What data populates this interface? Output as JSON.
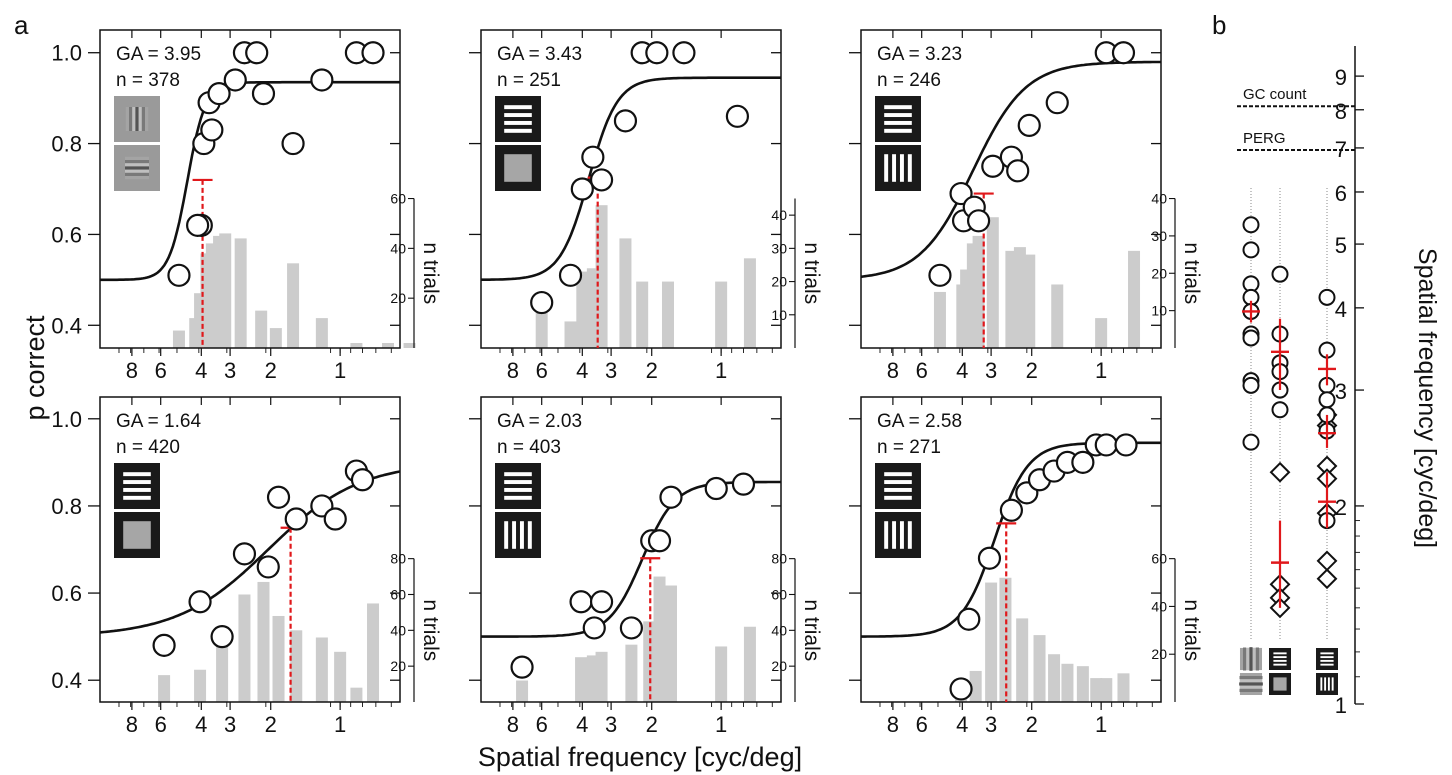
{
  "figure": {
    "panel_a_letter": "a",
    "panel_b_letter": "b",
    "ylabel": "p correct",
    "xlabel": "Spatial frequency [cyc/deg]",
    "secondary_ylabel": "n trials",
    "right_ylabel": "Spatial frequency [cyc/deg]",
    "colors": {
      "curve": "#111111",
      "bar": "#cccccc",
      "threshold": "#e0181b",
      "marker_stroke": "#111111"
    }
  },
  "chart_data": [
    {
      "type": "scatter",
      "panel": "a-top-left",
      "ga_text": "GA = 3.95",
      "n_text": "n = 378",
      "icons": [
        "gabor-vertical",
        "gabor-horizontal"
      ],
      "x_scale": "log-reversed",
      "xlim": [
        11,
        0.55
      ],
      "x_ticks": [
        8,
        6,
        4,
        3,
        2,
        1
      ],
      "ylim": [
        0.35,
        1.05
      ],
      "y_ticks": [
        0.4,
        0.6,
        0.8,
        1.0
      ],
      "threshold": {
        "x": 3.95,
        "p": 0.72
      },
      "curve": {
        "guess": 0.5,
        "top": 0.935,
        "x50": 4.6,
        "slope": 11
      },
      "points": [
        {
          "x": 5.0,
          "y": 0.51
        },
        {
          "x": 4.0,
          "y": 0.62
        },
        {
          "x": 4.15,
          "y": 0.62
        },
        {
          "x": 3.9,
          "y": 0.8
        },
        {
          "x": 3.7,
          "y": 0.89
        },
        {
          "x": 3.6,
          "y": 0.83
        },
        {
          "x": 3.35,
          "y": 0.91
        },
        {
          "x": 2.85,
          "y": 0.94
        },
        {
          "x": 2.6,
          "y": 1.0
        },
        {
          "x": 2.3,
          "y": 1.0
        },
        {
          "x": 2.15,
          "y": 0.91
        },
        {
          "x": 1.6,
          "y": 0.8
        },
        {
          "x": 1.2,
          "y": 0.94
        },
        {
          "x": 0.85,
          "y": 1.0
        },
        {
          "x": 0.72,
          "y": 1.0
        }
      ],
      "bars_ylim": [
        0,
        60
      ],
      "bars_ticks": [
        20,
        40,
        60
      ],
      "bars": [
        {
          "x": 5.0,
          "n": 7
        },
        {
          "x": 4.25,
          "n": 12
        },
        {
          "x": 4.05,
          "n": 22
        },
        {
          "x": 3.8,
          "n": 38
        },
        {
          "x": 3.6,
          "n": 42
        },
        {
          "x": 3.35,
          "n": 45
        },
        {
          "x": 3.15,
          "n": 46
        },
        {
          "x": 2.7,
          "n": 44
        },
        {
          "x": 2.2,
          "n": 15
        },
        {
          "x": 1.9,
          "n": 8
        },
        {
          "x": 1.6,
          "n": 34
        },
        {
          "x": 1.2,
          "n": 12
        },
        {
          "x": 0.85,
          "n": 2
        },
        {
          "x": 0.62,
          "n": 2
        },
        {
          "x": 0.5,
          "n": 2
        }
      ]
    },
    {
      "type": "scatter",
      "panel": "a-top-middle",
      "ga_text": "GA = 3.43",
      "n_text": "n = 251",
      "icons": [
        "horizontal-grating",
        "gray-square"
      ],
      "x_scale": "log-reversed",
      "xlim": [
        11,
        0.55
      ],
      "x_ticks": [
        8,
        6,
        4,
        3,
        2,
        1
      ],
      "ylim": [
        0.35,
        1.05
      ],
      "y_ticks": [
        0.4,
        0.6,
        0.8,
        1.0
      ],
      "threshold": {
        "x": 3.43,
        "p": 0.725
      },
      "curve": {
        "guess": 0.5,
        "top": 0.945,
        "x50": 3.75,
        "slope": 7
      },
      "points": [
        {
          "x": 6.0,
          "y": 0.45
        },
        {
          "x": 4.5,
          "y": 0.51
        },
        {
          "x": 4.0,
          "y": 0.7
        },
        {
          "x": 3.6,
          "y": 0.77
        },
        {
          "x": 3.3,
          "y": 0.72
        },
        {
          "x": 2.6,
          "y": 0.85
        },
        {
          "x": 2.2,
          "y": 1.0
        },
        {
          "x": 1.9,
          "y": 1.0
        },
        {
          "x": 1.45,
          "y": 1.0
        },
        {
          "x": 0.85,
          "y": 0.86
        }
      ],
      "bars_ylim": [
        0,
        45
      ],
      "bars_ticks": [
        10,
        20,
        30,
        40
      ],
      "bars": [
        {
          "x": 6.0,
          "n": 14
        },
        {
          "x": 4.5,
          "n": 8
        },
        {
          "x": 4.0,
          "n": 23
        },
        {
          "x": 3.6,
          "n": 24
        },
        {
          "x": 3.3,
          "n": 43
        },
        {
          "x": 2.6,
          "n": 33
        },
        {
          "x": 2.2,
          "n": 20
        },
        {
          "x": 1.7,
          "n": 20
        },
        {
          "x": 1.0,
          "n": 20
        },
        {
          "x": 0.75,
          "n": 27
        }
      ]
    },
    {
      "type": "scatter",
      "panel": "a-top-right",
      "ga_text": "GA = 3.23",
      "n_text": "n = 246",
      "icons": [
        "horizontal-grating",
        "vertical-grating"
      ],
      "x_scale": "log-reversed",
      "xlim": [
        11,
        0.55
      ],
      "x_ticks": [
        8,
        6,
        4,
        3,
        2,
        1
      ],
      "ylim": [
        0.35,
        1.05
      ],
      "y_ticks": [
        0.4,
        0.6,
        0.8,
        1.0
      ],
      "threshold": {
        "x": 3.23,
        "p": 0.69
      },
      "curve": {
        "guess": 0.5,
        "top": 0.98,
        "x50": 3.6,
        "slope": 3.8
      },
      "points": [
        {
          "x": 5.0,
          "y": 0.51
        },
        {
          "x": 4.05,
          "y": 0.69
        },
        {
          "x": 3.95,
          "y": 0.63
        },
        {
          "x": 3.55,
          "y": 0.66
        },
        {
          "x": 3.4,
          "y": 0.63
        },
        {
          "x": 2.95,
          "y": 0.75
        },
        {
          "x": 2.45,
          "y": 0.77
        },
        {
          "x": 2.3,
          "y": 0.74
        },
        {
          "x": 2.05,
          "y": 0.84
        },
        {
          "x": 1.55,
          "y": 0.89
        },
        {
          "x": 0.95,
          "y": 1.0
        },
        {
          "x": 0.8,
          "y": 1.0
        }
      ],
      "bars_ylim": [
        0,
        40
      ],
      "bars_ticks": [
        10,
        20,
        30,
        40
      ],
      "bars": [
        {
          "x": 5.0,
          "n": 15
        },
        {
          "x": 4.0,
          "n": 17
        },
        {
          "x": 3.85,
          "n": 21
        },
        {
          "x": 3.6,
          "n": 28
        },
        {
          "x": 3.4,
          "n": 30
        },
        {
          "x": 2.95,
          "n": 35
        },
        {
          "x": 2.45,
          "n": 26
        },
        {
          "x": 2.25,
          "n": 27
        },
        {
          "x": 2.05,
          "n": 25
        },
        {
          "x": 1.55,
          "n": 17
        },
        {
          "x": 1.0,
          "n": 8
        },
        {
          "x": 0.72,
          "n": 26
        }
      ]
    },
    {
      "type": "scatter",
      "panel": "a-bottom-left",
      "ga_text": "GA = 1.64",
      "n_text": "n = 420",
      "icons": [
        "horizontal-grating",
        "gray-square"
      ],
      "x_scale": "log-reversed",
      "xlim": [
        11,
        0.55
      ],
      "x_ticks": [
        8,
        6,
        4,
        3,
        2,
        1
      ],
      "ylim": [
        0.35,
        1.05
      ],
      "y_ticks": [
        0.4,
        0.6,
        0.8,
        1.0
      ],
      "threshold": {
        "x": 1.64,
        "p": 0.75
      },
      "curve": {
        "guess": 0.5,
        "top": 0.9,
        "x50": 2.05,
        "slope": 2.2
      },
      "points": [
        {
          "x": 5.8,
          "y": 0.48
        },
        {
          "x": 4.05,
          "y": 0.58
        },
        {
          "x": 3.25,
          "y": 0.5
        },
        {
          "x": 2.6,
          "y": 0.69
        },
        {
          "x": 2.05,
          "y": 0.66
        },
        {
          "x": 1.85,
          "y": 0.82
        },
        {
          "x": 1.55,
          "y": 0.77
        },
        {
          "x": 1.2,
          "y": 0.8
        },
        {
          "x": 1.05,
          "y": 0.77
        },
        {
          "x": 0.85,
          "y": 0.88
        },
        {
          "x": 0.8,
          "y": 0.86
        }
      ],
      "bars_ylim": [
        0,
        80
      ],
      "bars_ticks": [
        20,
        40,
        60,
        80
      ],
      "bars": [
        {
          "x": 5.8,
          "n": 15
        },
        {
          "x": 4.05,
          "n": 18
        },
        {
          "x": 3.25,
          "n": 32
        },
        {
          "x": 2.6,
          "n": 60
        },
        {
          "x": 2.15,
          "n": 67
        },
        {
          "x": 1.85,
          "n": 48
        },
        {
          "x": 1.55,
          "n": 40
        },
        {
          "x": 1.2,
          "n": 36
        },
        {
          "x": 1.0,
          "n": 28
        },
        {
          "x": 0.85,
          "n": 8
        },
        {
          "x": 0.72,
          "n": 55
        }
      ]
    },
    {
      "type": "scatter",
      "panel": "a-bottom-middle",
      "ga_text": "GA =  2.03",
      "n_text": "n = 403",
      "icons": [
        "horizontal-grating",
        "vertical-grating"
      ],
      "x_scale": "log-reversed",
      "xlim": [
        11,
        0.55
      ],
      "x_ticks": [
        8,
        6,
        4,
        3,
        2,
        1
      ],
      "ylim": [
        0.35,
        1.05
      ],
      "y_ticks": [
        0.4,
        0.6,
        0.8,
        1.0
      ],
      "threshold": {
        "x": 2.03,
        "p": 0.68
      },
      "curve": {
        "guess": 0.5,
        "top": 0.855,
        "x50": 2.2,
        "slope": 6
      },
      "points": [
        {
          "x": 7.3,
          "y": 0.43
        },
        {
          "x": 4.05,
          "y": 0.58
        },
        {
          "x": 3.55,
          "y": 0.52
        },
        {
          "x": 3.3,
          "y": 0.58
        },
        {
          "x": 2.45,
          "y": 0.52
        },
        {
          "x": 2.0,
          "y": 0.72
        },
        {
          "x": 1.85,
          "y": 0.72
        },
        {
          "x": 1.65,
          "y": 0.82
        },
        {
          "x": 1.05,
          "y": 0.84
        },
        {
          "x": 0.8,
          "y": 0.85
        }
      ],
      "bars_ylim": [
        0,
        80
      ],
      "bars_ticks": [
        20,
        40,
        60,
        80
      ],
      "bars": [
        {
          "x": 7.3,
          "n": 12
        },
        {
          "x": 4.05,
          "n": 25
        },
        {
          "x": 3.6,
          "n": 26
        },
        {
          "x": 3.3,
          "n": 28
        },
        {
          "x": 2.45,
          "n": 32
        },
        {
          "x": 2.05,
          "n": 45
        },
        {
          "x": 1.85,
          "n": 70
        },
        {
          "x": 1.65,
          "n": 65
        },
        {
          "x": 1.0,
          "n": 31
        },
        {
          "x": 0.75,
          "n": 42
        }
      ]
    },
    {
      "type": "scatter",
      "panel": "a-bottom-right",
      "ga_text": "GA = 2.58",
      "n_text": "n = 271",
      "icons": [
        "horizontal-grating",
        "vertical-grating"
      ],
      "x_scale": "log-reversed",
      "xlim": [
        11,
        0.55
      ],
      "x_ticks": [
        8,
        6,
        4,
        3,
        2,
        1
      ],
      "ylim": [
        0.35,
        1.05
      ],
      "y_ticks": [
        0.4,
        0.6,
        0.8,
        1.0
      ],
      "threshold": {
        "x": 2.58,
        "p": 0.76
      },
      "curve": {
        "guess": 0.5,
        "top": 0.945,
        "x50": 2.9,
        "slope": 6
      },
      "points": [
        {
          "x": 4.05,
          "y": 0.38
        },
        {
          "x": 3.75,
          "y": 0.54
        },
        {
          "x": 3.05,
          "y": 0.68
        },
        {
          "x": 2.45,
          "y": 0.79
        },
        {
          "x": 2.1,
          "y": 0.83
        },
        {
          "x": 1.85,
          "y": 0.86
        },
        {
          "x": 1.6,
          "y": 0.88
        },
        {
          "x": 1.4,
          "y": 0.9
        },
        {
          "x": 1.2,
          "y": 0.9
        },
        {
          "x": 1.05,
          "y": 0.94
        },
        {
          "x": 0.95,
          "y": 0.94
        },
        {
          "x": 0.78,
          "y": 0.94
        }
      ],
      "bars_ylim": [
        0,
        60
      ],
      "bars_ticks": [
        20,
        40,
        60
      ],
      "bars": [
        {
          "x": 4.05,
          "n": 4
        },
        {
          "x": 3.5,
          "n": 13
        },
        {
          "x": 3.0,
          "n": 50
        },
        {
          "x": 2.6,
          "n": 52
        },
        {
          "x": 2.2,
          "n": 35
        },
        {
          "x": 1.85,
          "n": 28
        },
        {
          "x": 1.6,
          "n": 20
        },
        {
          "x": 1.4,
          "n": 16
        },
        {
          "x": 1.2,
          "n": 15
        },
        {
          "x": 1.05,
          "n": 10
        },
        {
          "x": 0.95,
          "n": 10
        },
        {
          "x": 0.8,
          "n": 12
        }
      ]
    },
    {
      "type": "scatter",
      "panel": "b",
      "y_scale": "log",
      "ylim": [
        1,
        10
      ],
      "y_ticks": [
        1,
        2,
        3,
        4,
        5,
        6,
        7,
        8,
        9
      ],
      "ylabel": "Spatial frequency [cyc/deg]",
      "reference_lines": [
        {
          "label": "GC count",
          "y": 8.1
        },
        {
          "label": "PERG",
          "y": 6.95
        }
      ],
      "columns": [
        {
          "name": "gabor",
          "icons": [
            "gabor-vertical",
            "gabor-horizontal"
          ],
          "circles": [
            5.35,
            4.9,
            4.35,
            4.15,
            3.95,
            3.65,
            3.6,
            3.1,
            3.05,
            2.5
          ],
          "diamonds": [],
          "mean": [
            {
              "y": 3.95,
              "ci": [
                3.8,
                4.1
              ]
            }
          ]
        },
        {
          "name": "grating-vs-gray",
          "icons": [
            "horizontal-grating",
            "gray-square"
          ],
          "circles": [
            4.5,
            3.65,
            3.3,
            3.2,
            3.0,
            2.8
          ],
          "diamonds": [
            2.25,
            1.52,
            1.45,
            1.4
          ],
          "mean": [
            {
              "y": 3.43,
              "ci": [
                3.0,
                3.85
              ]
            },
            {
              "y": 1.64,
              "ci": [
                1.4,
                1.9
              ]
            }
          ]
        },
        {
          "name": "horizontal-vs-vertical",
          "icons": [
            "horizontal-grating",
            "vertical-grating"
          ],
          "circles": [
            4.15,
            3.45,
            3.05,
            2.9,
            2.75,
            2.6,
            1.9
          ],
          "diamonds": [
            2.75,
            2.65,
            2.3,
            2.2,
            1.95,
            1.65,
            1.55
          ],
          "mean": [
            {
              "y": 3.23,
              "ci": [
                3.05,
                3.4
              ]
            },
            {
              "y": 2.58,
              "ci": [
                2.45,
                2.75
              ]
            },
            {
              "y": 2.03,
              "ci": [
                1.85,
                2.25
              ]
            }
          ]
        }
      ]
    }
  ]
}
